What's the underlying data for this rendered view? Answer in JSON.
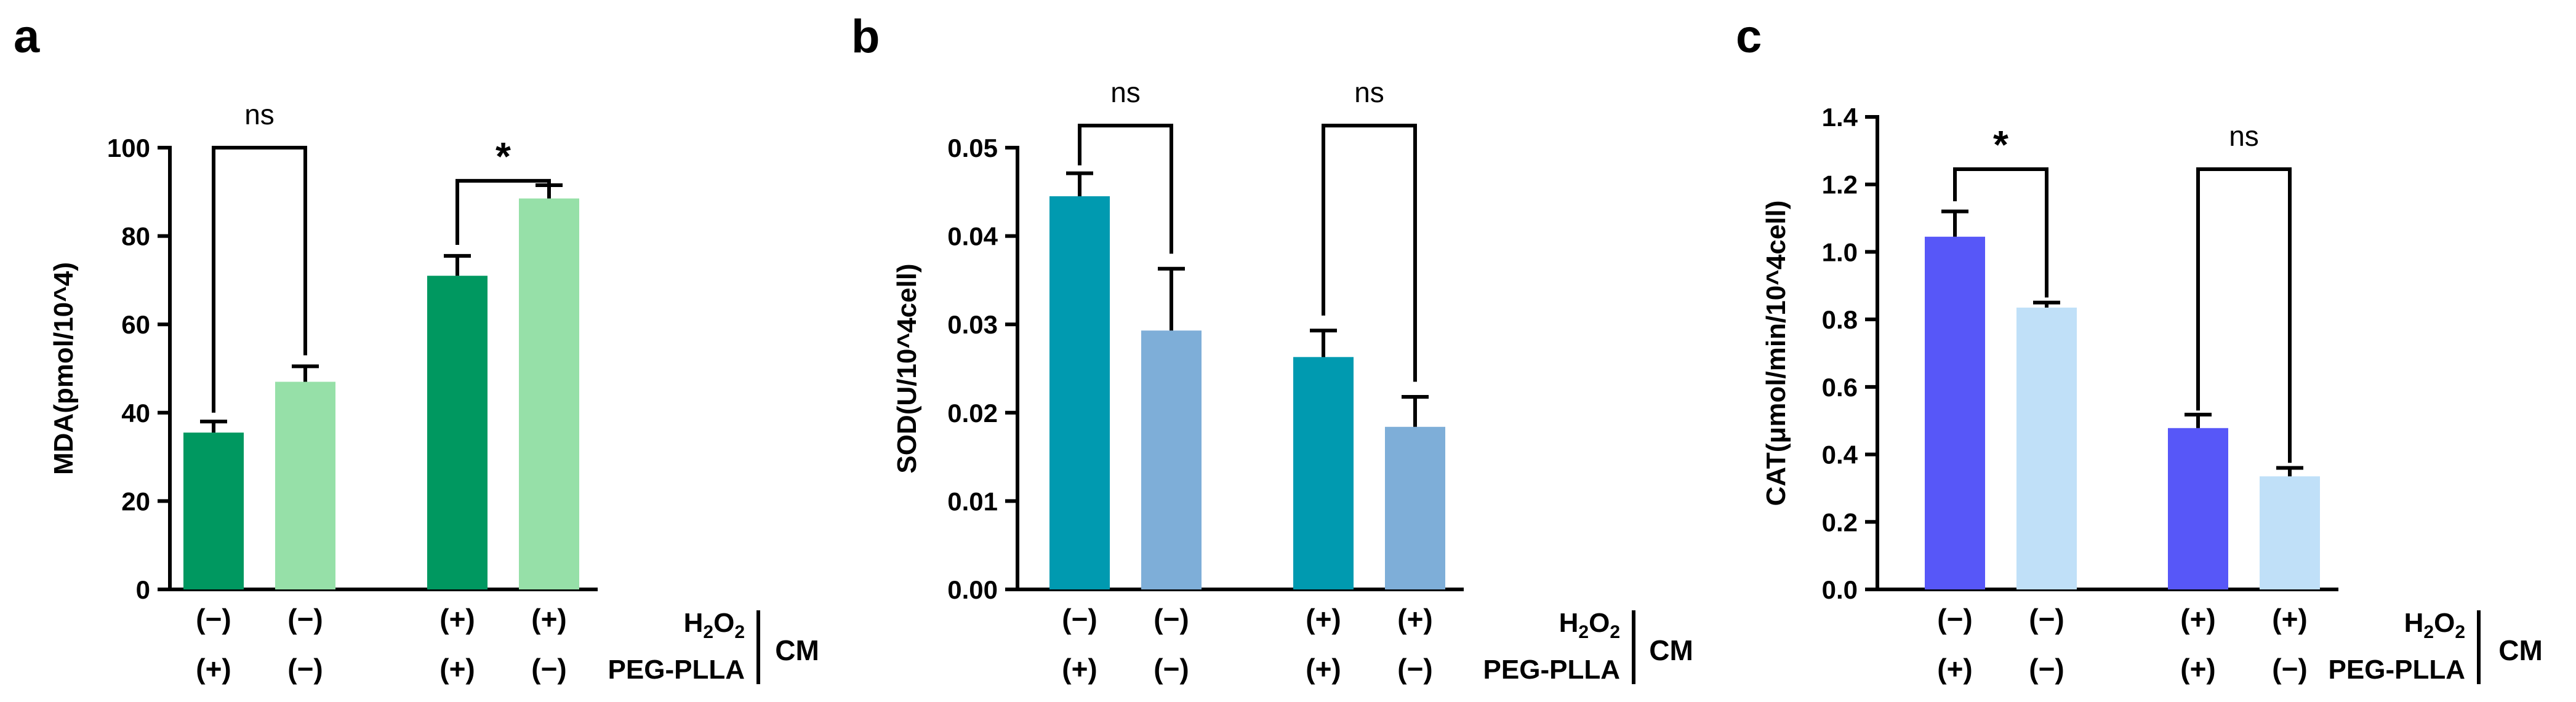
{
  "figure_title": "",
  "chart_data": [
    {
      "panel_label": "a",
      "type": "bar",
      "ylabel": "MDA(pmol/10^4)",
      "ylim": [
        0,
        100
      ],
      "yticks": [
        0,
        20,
        40,
        60,
        80,
        100
      ],
      "tick_decimals": 0,
      "values": [
        35.5,
        47.0,
        71.0,
        88.5
      ],
      "errors": [
        2.5,
        3.5,
        4.5,
        3.0
      ],
      "colors": [
        "#009860",
        "#96e0a8",
        "#009860",
        "#96e0a8"
      ],
      "comparisons": [
        {
          "from": 0,
          "to": 1,
          "label": "ns",
          "y": 100,
          "left_drop": 40,
          "right_drop": 53
        },
        {
          "from": 2,
          "to": 3,
          "label": "*",
          "y": 92.5,
          "left_drop": 78,
          "right_drop": 91.5
        }
      ],
      "conditions": {
        "row1_label": "H2O2",
        "row1_main": "H",
        "row1_sub": "2",
        "row1_tail": "O",
        "row1_tail_sub": "2",
        "row2_label": "PEG-PLLA",
        "group_label": "CM",
        "row1": [
          "(−)",
          "(−)",
          "(+)",
          "(+)"
        ],
        "row2": [
          "(+)",
          "(−)",
          "(+)",
          "(−)"
        ]
      }
    },
    {
      "panel_label": "b",
      "type": "bar",
      "ylabel": "SOD(U/10^4cell)",
      "ylim": [
        0,
        0.05
      ],
      "yticks": [
        0.0,
        0.01,
        0.02,
        0.03,
        0.04,
        0.05
      ],
      "tick_decimals": 2,
      "values": [
        0.0445,
        0.0293,
        0.0263,
        0.0184
      ],
      "errors": [
        0.0026,
        0.007,
        0.003,
        0.0034
      ],
      "colors": [
        "#009ab0",
        "#7eaed8",
        "#009ab0",
        "#7eaed8"
      ],
      "comparisons": [
        {
          "from": 0,
          "to": 1,
          "label": "ns",
          "y": 0.0525,
          "left_drop": 0.048,
          "right_drop": 0.038
        },
        {
          "from": 2,
          "to": 3,
          "label": "ns",
          "y": 0.0525,
          "left_drop": 0.031,
          "right_drop": 0.0235
        }
      ],
      "conditions": {
        "row1_label": "H2O2",
        "row1_main": "H",
        "row1_sub": "2",
        "row1_tail": "O",
        "row1_tail_sub": "2",
        "row2_label": "PEG-PLLA",
        "group_label": "CM",
        "row1": [
          "(−)",
          "(−)",
          "(+)",
          "(+)"
        ],
        "row2": [
          "(+)",
          "(−)",
          "(+)",
          "(−)"
        ]
      }
    },
    {
      "panel_label": "c",
      "type": "bar",
      "ylabel": "CAT(μmol/min/10^4cell)",
      "ylim": [
        0,
        1.4
      ],
      "yticks": [
        0.0,
        0.2,
        0.4,
        0.6,
        0.8,
        1.0,
        1.2,
        1.4
      ],
      "tick_decimals": 1,
      "values": [
        1.045,
        0.835,
        0.478,
        0.335
      ],
      "errors": [
        0.075,
        0.015,
        0.04,
        0.025
      ],
      "colors": [
        "#5757f8",
        "#c0e0f8",
        "#5757f8",
        "#c0e0f8"
      ],
      "comparisons": [
        {
          "from": 0,
          "to": 1,
          "label": "*",
          "y": 1.245,
          "left_drop": 1.15,
          "right_drop": 0.865
        },
        {
          "from": 2,
          "to": 3,
          "label": "ns",
          "y": 1.245,
          "left_drop": 0.53,
          "right_drop": 0.375
        }
      ],
      "conditions": {
        "row1_label": "H2O2",
        "row1_main": "H",
        "row1_sub": "2",
        "row1_tail": "O",
        "row1_tail_sub": "2",
        "row2_label": "PEG-PLLA",
        "group_label": "CM",
        "row1": [
          "(−)",
          "(−)",
          "(+)",
          "(+)"
        ],
        "row2": [
          "(+)",
          "(−)",
          "(+)",
          "(−)"
        ]
      }
    }
  ]
}
